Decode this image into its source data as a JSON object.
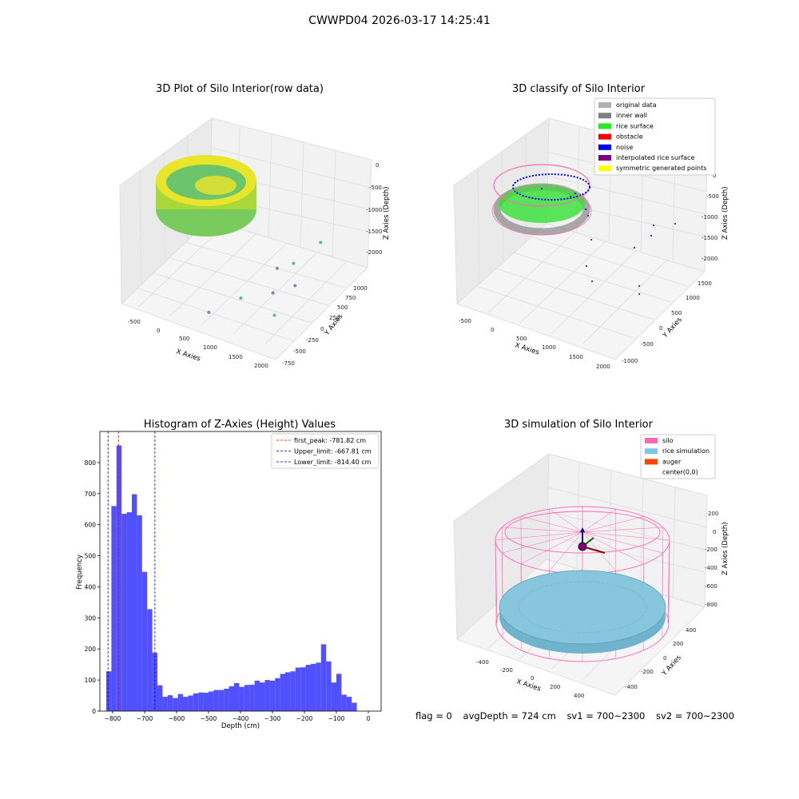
{
  "figure": {
    "suptitle": "CWWPD04 2026-03-17 14:25:41",
    "footer": {
      "flag": "flag = 0",
      "avg_depth": "avgDepth = 724 cm",
      "sv1": "sv1 = 700~2300",
      "sv2": "sv2 = 700~2300"
    }
  },
  "colors": {
    "hist_bar": "#5050ff",
    "first_peak": "#ff0000",
    "limit_line": "#0000cc",
    "original_data": "#b0b0b0",
    "inner_wall": "#808080",
    "rice_surface": "#22ee22",
    "obstacle": "#ff0000",
    "noise": "#0000ee",
    "interpolated": "#800080",
    "symmetric": "#ffff00",
    "silo": "#ff69b4",
    "rice_sim": "#7ec8e3",
    "auger": "#ff4500"
  },
  "chart_data": [
    {
      "type": "scatter",
      "title": "3D Plot of Silo Interior(row data)",
      "xlabel": "X Axies",
      "ylabel": "Y Axies",
      "zlabel": "Z Axies (Depth)",
      "x_ticks": [
        "-500",
        "0",
        "500",
        "1000",
        "1500",
        "2000"
      ],
      "y_ticks": [
        "-750",
        "-500",
        "-250",
        "0",
        "250",
        "500",
        "750",
        "1000"
      ],
      "z_ticks": [
        "0",
        "-500",
        "-1000",
        "-1500",
        "-2000"
      ],
      "xlim": [
        -700,
        2000
      ],
      "ylim": [
        -750,
        1100
      ],
      "zlim": [
        -2300,
        0
      ],
      "outlier_points": [
        {
          "x": 1400,
          "y": 300,
          "z": -1500
        },
        {
          "x": 1200,
          "y": 200,
          "z": -1600
        },
        {
          "x": 1700,
          "y": 500,
          "z": -1100
        },
        {
          "x": 1300,
          "y": 0,
          "z": -1900
        },
        {
          "x": 1000,
          "y": -300,
          "z": -1850
        },
        {
          "x": 700,
          "y": -600,
          "z": -2000
        },
        {
          "x": 1500,
          "y": -200,
          "z": -2100
        },
        {
          "x": 1600,
          "y": 100,
          "z": -1700
        }
      ]
    },
    {
      "type": "scatter",
      "title": "3D classify of Silo Interior",
      "xlabel": "X Axies",
      "ylabel": "Y Axies",
      "zlabel": "Z Axies (Depth)",
      "x_ticks": [
        "-500",
        "0",
        "500",
        "1000",
        "1500",
        "2000"
      ],
      "y_ticks": [
        "-1000",
        "-500",
        "0",
        "500",
        "1000",
        "1500"
      ],
      "z_ticks": [
        "0",
        "-500",
        "-1000",
        "-1500",
        "-2000"
      ],
      "xlim": [
        -700,
        2000
      ],
      "ylim": [
        -1000,
        1500
      ],
      "zlim": [
        -2300,
        0
      ],
      "legend": [
        "original data",
        "inner wall",
        "rice surface",
        "obstacle",
        "noise",
        "interpolated rice surface",
        "symmetric generated points"
      ],
      "legend_colors": [
        "#b0b0b0",
        "#808080",
        "#22ee22",
        "#ff0000",
        "#0000ee",
        "#800080",
        "#ffff00"
      ],
      "legend_placement": "top-right"
    },
    {
      "type": "bar",
      "title": "Histogram of Z-Axies (Height) Values",
      "xlabel": "Depth (cm)",
      "ylabel": "Frequency",
      "xlim": [
        -840,
        40
      ],
      "ylim": [
        0,
        900
      ],
      "x_ticks": [
        -800,
        -700,
        -600,
        -500,
        -400,
        -300,
        -200,
        -100,
        0
      ],
      "y_ticks": [
        0,
        100,
        200,
        300,
        400,
        500,
        600,
        700,
        800
      ],
      "bin_start": -820,
      "bin_width": 16,
      "values": [
        128,
        660,
        855,
        635,
        640,
        698,
        630,
        448,
        328,
        188,
        83,
        46,
        51,
        42,
        55,
        46,
        50,
        57,
        60,
        59,
        63,
        68,
        68,
        72,
        80,
        90,
        78,
        84,
        85,
        98,
        92,
        100,
        98,
        106,
        120,
        125,
        128,
        140,
        141,
        149,
        152,
        156,
        215,
        160,
        92,
        120,
        53,
        46,
        27
      ],
      "vlines": [
        {
          "label": "first_peak: -781.82 cm",
          "x": -781.82,
          "color": "#ff0000"
        },
        {
          "label": "Upper_limit: -667.81 cm",
          "x": -667.81,
          "color": "#0000cc"
        },
        {
          "label": "Lower_limit: -814.40 cm",
          "x": -814.4,
          "color": "#0000cc"
        }
      ],
      "legend_placement": "top-right"
    },
    {
      "type": "scatter",
      "title": "3D simulation of Silo Interior",
      "xlabel": "X Axies",
      "ylabel": "Y Axies",
      "zlabel": "Z Axies (Depth)",
      "x_ticks": [
        "-400",
        "-200",
        "0",
        "200",
        "400"
      ],
      "y_ticks": [
        "-400",
        "-200",
        "0",
        "200",
        "400"
      ],
      "z_ticks": [
        "200",
        "0",
        "-200",
        "-400",
        "-600",
        "-800"
      ],
      "xlim": [
        -500,
        500
      ],
      "ylim": [
        -500,
        500
      ],
      "zlim": [
        -850,
        300
      ],
      "legend": [
        "silo",
        "rice simulation",
        "auger",
        "center(0,0)"
      ],
      "legend_colors": [
        "#ff69b4",
        "#7ec8e3",
        "#ff4500",
        ""
      ],
      "legend_placement": "top-right"
    }
  ]
}
